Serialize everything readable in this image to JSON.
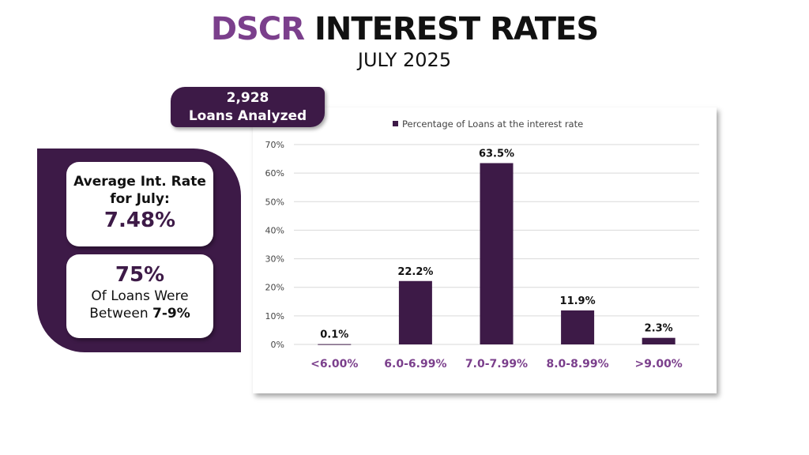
{
  "header": {
    "title_accent": "DSCR",
    "title_rest": "INTEREST RATES",
    "subtitle": "JULY 2025"
  },
  "badge": {
    "count": "2,928",
    "label": "Loans Analyzed"
  },
  "avg_card": {
    "line1": "Average Int. Rate",
    "line2": "for July:",
    "value": "7.48%"
  },
  "range_card": {
    "value": "75%",
    "line1": "Of Loans Were",
    "line2_prefix": "Between ",
    "line2_bold": "7-9%"
  },
  "colors": {
    "bar": "#3d1a47",
    "accent": "#7b3f8c",
    "category_label": "#7b3f8c"
  },
  "chart_data": {
    "type": "bar",
    "categories": [
      "<6.00%",
      "6.0-6.99%",
      "7.0-7.99%",
      "8.0-8.99%",
      ">9.00%"
    ],
    "series": [
      {
        "name": "Percentage of Loans at the interest rate",
        "values": [
          0.1,
          22.2,
          63.5,
          11.9,
          2.3
        ]
      }
    ],
    "data_labels": [
      "0.1%",
      "22.2%",
      "63.5%",
      "11.9%",
      "2.3%"
    ],
    "y_ticks": [
      "0%",
      "10%",
      "20%",
      "30%",
      "40%",
      "50%",
      "60%",
      "70%"
    ],
    "ylim": [
      0,
      70
    ],
    "grid": true,
    "legend": "top"
  }
}
